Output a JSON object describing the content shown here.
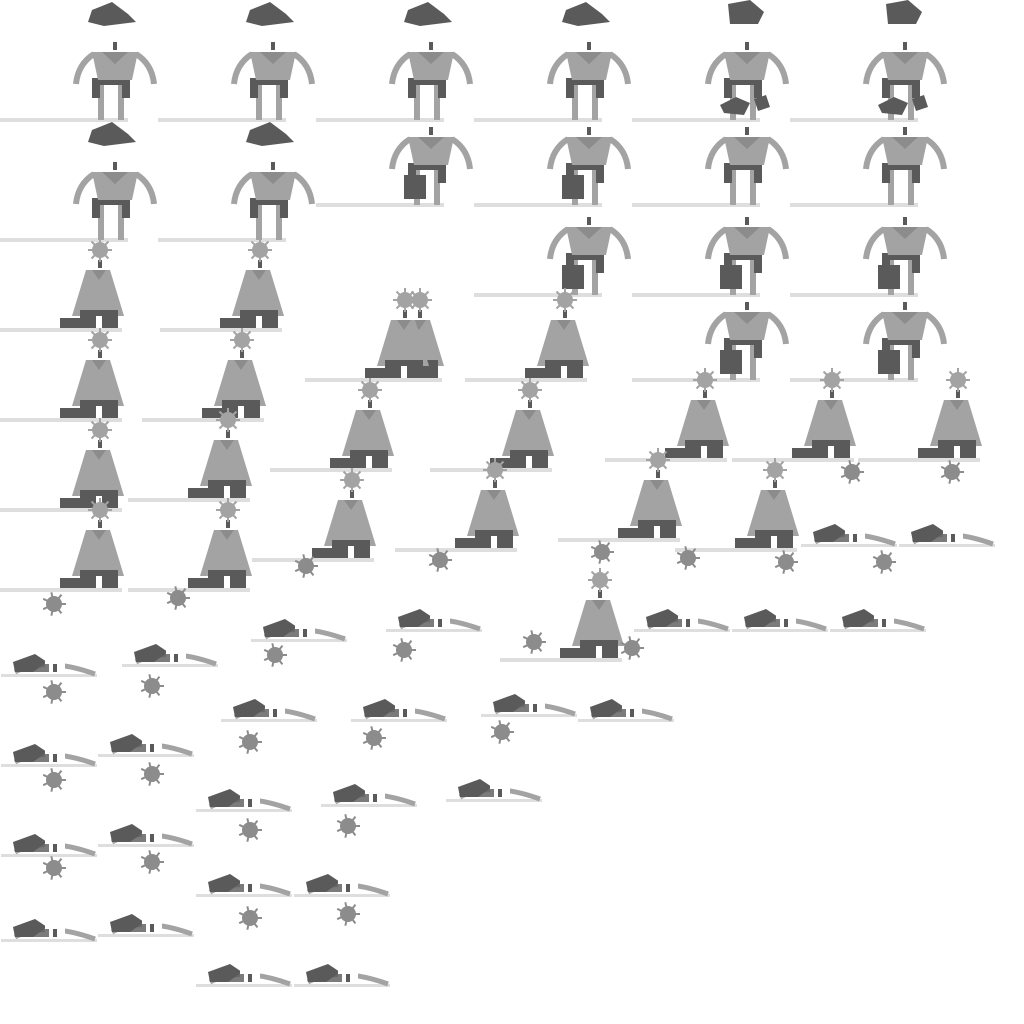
{
  "sheet": {
    "kind": "sprite-sheet",
    "background": "#ffffff",
    "palette": {
      "body": "#a3a3a3",
      "dark": "#5a5a5a",
      "ground": "#dedede",
      "mid": "#8c8c8c",
      "face": "#ffffff"
    },
    "sprite_count": 68
  }
}
